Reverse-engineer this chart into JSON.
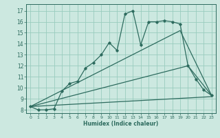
{
  "xlabel": "Humidex (Indice chaleur)",
  "bg_color": "#cce8e0",
  "grid_color": "#99ccbe",
  "line_color": "#2d6b5e",
  "xlim": [
    -0.5,
    23.5
  ],
  "ylim": [
    7.7,
    17.6
  ],
  "xticks": [
    0,
    1,
    2,
    3,
    4,
    5,
    6,
    7,
    8,
    9,
    10,
    11,
    12,
    13,
    14,
    15,
    16,
    17,
    18,
    19,
    20,
    21,
    22,
    23
  ],
  "yticks": [
    8,
    9,
    10,
    11,
    12,
    13,
    14,
    15,
    16,
    17
  ],
  "line1_x": [
    0,
    1,
    2,
    3,
    4,
    5,
    6,
    7,
    8,
    9,
    10,
    11,
    12,
    13,
    14,
    15,
    16,
    17,
    18,
    19,
    20,
    21,
    22,
    23
  ],
  "line1_y": [
    8.3,
    8.0,
    8.0,
    8.1,
    9.7,
    10.4,
    10.6,
    11.8,
    12.3,
    13.0,
    14.1,
    13.4,
    16.7,
    17.0,
    13.9,
    16.0,
    16.0,
    16.1,
    16.0,
    15.8,
    12.0,
    10.8,
    9.8,
    9.3
  ],
  "line2_x": [
    0,
    23
  ],
  "line2_y": [
    8.3,
    9.2
  ],
  "line3_x": [
    0,
    20,
    23
  ],
  "line3_y": [
    8.3,
    12.0,
    9.3
  ],
  "line4_x": [
    0,
    19,
    23
  ],
  "line4_y": [
    8.3,
    15.2,
    9.3
  ]
}
